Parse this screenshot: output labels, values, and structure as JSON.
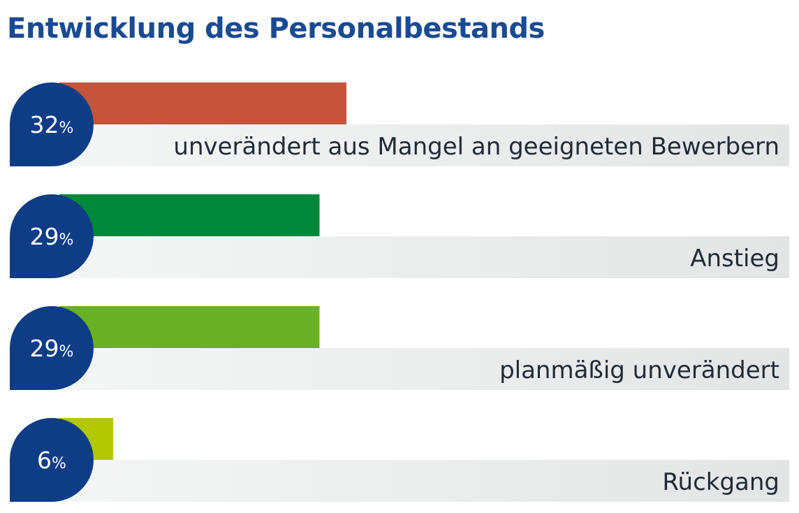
{
  "chart_data": {
    "type": "bar",
    "orientation": "horizontal",
    "title": "Entwicklung des Personalbestands",
    "unit": "%",
    "categories": [
      "unverändert aus Mangel an geeigneten Bewerbern",
      "Anstieg",
      "planmäßig unverändert",
      "Rückgang"
    ],
    "values": [
      32,
      29,
      29,
      6
    ],
    "value_labels": [
      "32",
      "29",
      "29",
      "6"
    ],
    "colors": [
      "#c4543a",
      "#00883a",
      "#6ab023",
      "#b2c800"
    ],
    "xlim": [
      0,
      100
    ],
    "grid": false,
    "legend": "none"
  },
  "colors": {
    "title": "#1a4a92",
    "bubble": "#0e3d86",
    "label": "#1f2a36",
    "track_light": "#f6f7f7",
    "track_dark": "#e3e5e5"
  }
}
